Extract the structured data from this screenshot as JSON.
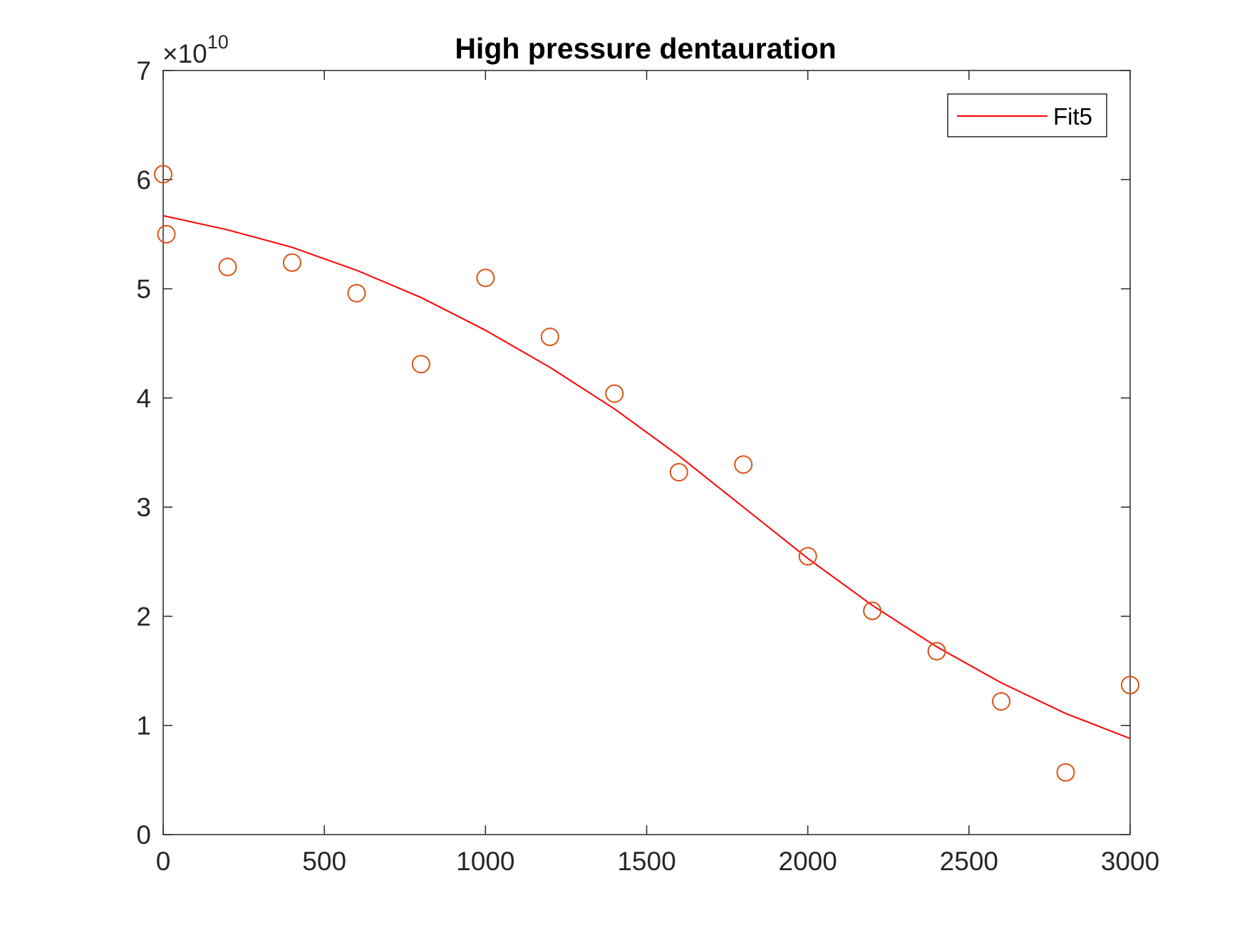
{
  "chart_data": {
    "type": "scatter",
    "title": "High pressure dentauration",
    "xlabel": "",
    "ylabel": "",
    "xlim": [
      0,
      3000
    ],
    "ylim": [
      0,
      7
    ],
    "x_ticks": [
      "0",
      "500",
      "1000",
      "1500",
      "2000",
      "2500",
      "3000"
    ],
    "y_ticks": [
      "0",
      "1",
      "2",
      "3",
      "4",
      "5",
      "6",
      "7"
    ],
    "y_exponent_prefix": "×10",
    "y_exponent": "10",
    "grid": false,
    "legend": {
      "position": "top-right",
      "entries": [
        "Fit5"
      ]
    },
    "points": {
      "color": "#d95319",
      "marker": "circle",
      "x": [
        0,
        10,
        200,
        400,
        600,
        800,
        1000,
        1200,
        1400,
        1600,
        1800,
        2000,
        2200,
        2400,
        2600,
        2800,
        3000
      ],
      "y": [
        6.05,
        5.5,
        5.2,
        5.24,
        4.96,
        4.31,
        5.1,
        4.56,
        4.04,
        3.32,
        3.39,
        2.55,
        2.05,
        1.68,
        1.22,
        0.57,
        1.37
      ]
    },
    "series": [
      {
        "name": "Fit5",
        "color": "#ff0000",
        "x": [
          0,
          200,
          400,
          600,
          800,
          1000,
          1200,
          1400,
          1600,
          1800,
          2000,
          2200,
          2400,
          2600,
          2800,
          3000
        ],
        "y": [
          5.67,
          5.54,
          5.38,
          5.17,
          4.92,
          4.62,
          4.28,
          3.9,
          3.47,
          3.0,
          2.53,
          2.1,
          1.72,
          1.39,
          1.11,
          0.88
        ]
      }
    ]
  }
}
